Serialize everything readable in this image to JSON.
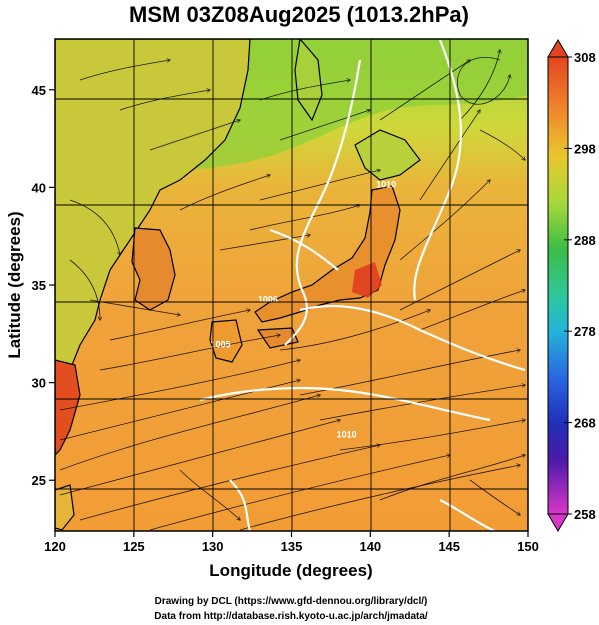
{
  "title": "MSM 03Z08Aug2025 (1013.2hPa)",
  "x_axis": {
    "label": "Longitude (degrees)",
    "range": [
      120,
      150
    ],
    "ticks": [
      {
        "value": 120,
        "label": "120"
      },
      {
        "value": 125,
        "label": "125"
      },
      {
        "value": 130,
        "label": "130"
      },
      {
        "value": 135,
        "label": "135"
      },
      {
        "value": 140,
        "label": "140"
      },
      {
        "value": 145,
        "label": "145"
      },
      {
        "value": 150,
        "label": "150"
      }
    ]
  },
  "y_axis": {
    "label": "Latitude  (degrees)",
    "range": [
      22.4,
      47.6
    ],
    "ticks": [
      {
        "value": 25,
        "label": "25"
      },
      {
        "value": 30,
        "label": "30"
      },
      {
        "value": 35,
        "label": "35"
      },
      {
        "value": 40,
        "label": "40"
      },
      {
        "value": 45,
        "label": "45"
      }
    ]
  },
  "colorbar": {
    "min": 258,
    "max": 308,
    "ticks": [
      {
        "value": 308,
        "label": "308"
      },
      {
        "value": 298,
        "label": "298"
      },
      {
        "value": 288,
        "label": "288"
      },
      {
        "value": 278,
        "label": "278"
      },
      {
        "value": 268,
        "label": "268"
      },
      {
        "value": 258,
        "label": "258"
      }
    ]
  },
  "contour_labels": [
    {
      "text": "1010",
      "lon": 141.0,
      "lat": 40.0
    },
    {
      "text": "1006",
      "lon": 133.5,
      "lat": 34.1
    },
    {
      "text": "1005",
      "lon": 130.5,
      "lat": 31.8
    },
    {
      "text": "1010",
      "lon": 138.5,
      "lat": 27.2
    }
  ],
  "footer": {
    "line1": "Drawing by DCL (https://www.gfd-dennou.org/library/dcl/)",
    "line2": "Data from http://database.rish.kyoto-u.ac.jp/arch/jmadata/"
  },
  "colors": {
    "ocean_fill": "#f2a23a",
    "land_fill": "#e38a2c",
    "cool_land": "#7ec83a",
    "contour": "#ffffff",
    "coast": "#000000"
  }
}
